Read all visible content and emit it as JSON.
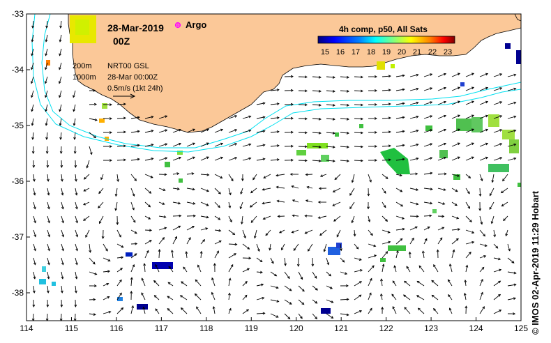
{
  "title": {
    "date": "28-Mar-2019",
    "time": "00Z",
    "argo_label": "Argo"
  },
  "colorbar": {
    "title": "4h comp, p50, All Sats",
    "ticks": [
      "15",
      "16",
      "17",
      "18",
      "19",
      "20",
      "21",
      "22",
      "23"
    ],
    "colors": [
      "#00007f",
      "#0000ff",
      "#0080ff",
      "#00ffff",
      "#80ff80",
      "#ffff00",
      "#ff8000",
      "#ff0000",
      "#800000"
    ]
  },
  "legend": {
    "contour_200": "200m",
    "contour_1000": "1000m",
    "product": "NRT00 GSL",
    "valid": "28-Mar 00:00Z",
    "vector_scale": "0.5m/s (1kt 24h)"
  },
  "axes": {
    "x_ticks": [
      "114",
      "115",
      "116",
      "117",
      "118",
      "119",
      "120",
      "121",
      "122",
      "123",
      "124",
      "125"
    ],
    "y_ticks": [
      "-33",
      "-34",
      "-35",
      "-36",
      "-37",
      "-38"
    ],
    "lon_range": [
      114,
      125
    ],
    "lat_range": [
      -38.5,
      -33
    ]
  },
  "credit": "© IMOS 02-Apr-2019 11:29 Hobart",
  "colors": {
    "land": "#fbc898",
    "contour": "#00e0f0",
    "argo": "#ff00ff"
  }
}
